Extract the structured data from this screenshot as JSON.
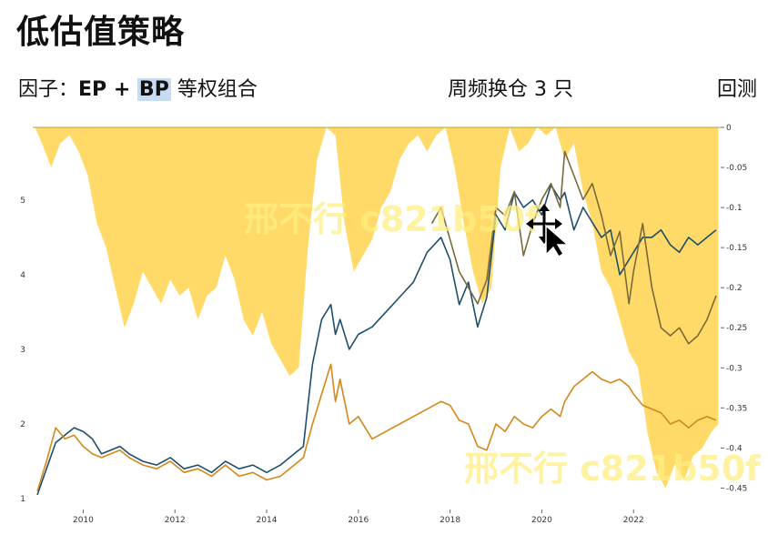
{
  "slide": {
    "title": "低估值策略",
    "factor_prefix": "因子：",
    "factor_ep": "EP + ",
    "factor_bp": "BP",
    "factor_suffix": " 等权组合",
    "rebalance": "周频换仓 3 只",
    "backtest_partial": "回测",
    "watermark": "邢不行 c821b50f"
  },
  "chart_data": {
    "type": "line",
    "title": "",
    "x_ticks": [
      "2010",
      "2012",
      "2014",
      "2016",
      "2018",
      "2020",
      "2022"
    ],
    "x_range": [
      2008.9,
      2023.9
    ],
    "y_left_ticks": [
      "1",
      "2",
      "3",
      "4",
      "5"
    ],
    "y_left_range": [
      1,
      5.9
    ],
    "y_right_ticks": [
      "0",
      "-0.05",
      "-0.1",
      "-0.15",
      "-0.2",
      "-0.25",
      "-0.3",
      "-0.35",
      "-0.4",
      "-0.45"
    ],
    "y_right_range": [
      -0.47,
      0
    ],
    "series": [
      {
        "role": "strategy",
        "color": "#1f4e6b",
        "axis": "left",
        "x": [
          2009.0,
          2009.2,
          2009.4,
          2009.6,
          2009.8,
          2010.0,
          2010.2,
          2010.4,
          2010.6,
          2010.8,
          2011.0,
          2011.3,
          2011.6,
          2011.9,
          2012.2,
          2012.5,
          2012.8,
          2013.1,
          2013.4,
          2013.7,
          2014.0,
          2014.3,
          2014.6,
          2014.8,
          2015.0,
          2015.2,
          2015.4,
          2015.5,
          2015.6,
          2015.8,
          2016.0,
          2016.3,
          2016.6,
          2016.9,
          2017.2,
          2017.5,
          2017.8,
          2018.0,
          2018.2,
          2018.4,
          2018.6,
          2018.8,
          2019.0,
          2019.2,
          2019.4,
          2019.6,
          2019.8,
          2020.0,
          2020.2,
          2020.4,
          2020.5,
          2020.7,
          2020.9,
          2021.1,
          2021.3,
          2021.5,
          2021.7,
          2021.9,
          2022.0,
          2022.2,
          2022.4,
          2022.6,
          2022.8,
          2023.0,
          2023.2,
          2023.4,
          2023.6,
          2023.8
        ],
        "y": [
          1.05,
          1.4,
          1.75,
          1.85,
          1.95,
          1.9,
          1.8,
          1.6,
          1.65,
          1.7,
          1.6,
          1.5,
          1.45,
          1.55,
          1.4,
          1.45,
          1.35,
          1.5,
          1.4,
          1.45,
          1.35,
          1.45,
          1.6,
          1.7,
          2.8,
          3.4,
          3.6,
          3.2,
          3.4,
          3.0,
          3.2,
          3.3,
          3.5,
          3.7,
          3.9,
          4.3,
          4.5,
          4.2,
          3.6,
          3.9,
          3.3,
          3.7,
          4.8,
          4.6,
          5.1,
          4.9,
          5.0,
          4.8,
          5.2,
          5.0,
          5.1,
          4.6,
          4.9,
          4.7,
          4.5,
          4.6,
          4.0,
          4.2,
          4.3,
          4.5,
          4.5,
          4.6,
          4.4,
          4.3,
          4.5,
          4.4,
          4.5,
          4.6
        ]
      },
      {
        "role": "drawdown-trace",
        "color": "#7a6a3a",
        "axis": "right",
        "x": [
          2017.6,
          2017.8,
          2018.0,
          2018.2,
          2018.4,
          2018.6,
          2018.8,
          2019.0,
          2019.2,
          2019.4,
          2019.6,
          2019.8,
          2020.0,
          2020.2,
          2020.4,
          2020.5,
          2020.7,
          2020.9,
          2021.1,
          2021.3,
          2021.5,
          2021.7,
          2021.9,
          2022.0,
          2022.2,
          2022.4,
          2022.6,
          2022.8,
          2023.0,
          2023.2,
          2023.4,
          2023.6,
          2023.8
        ],
        "y": [
          -0.12,
          -0.1,
          -0.14,
          -0.18,
          -0.2,
          -0.22,
          -0.19,
          -0.1,
          -0.11,
          -0.08,
          -0.16,
          -0.12,
          -0.09,
          -0.07,
          -0.1,
          -0.03,
          -0.06,
          -0.09,
          -0.07,
          -0.11,
          -0.16,
          -0.13,
          -0.22,
          -0.18,
          -0.12,
          -0.2,
          -0.25,
          -0.26,
          -0.25,
          -0.27,
          -0.26,
          -0.24,
          -0.21
        ]
      },
      {
        "role": "benchmark",
        "color": "#d4881a",
        "axis": "left",
        "x": [
          2009.0,
          2009.2,
          2009.4,
          2009.6,
          2009.8,
          2010.0,
          2010.2,
          2010.4,
          2010.6,
          2010.8,
          2011.0,
          2011.3,
          2011.6,
          2011.9,
          2012.2,
          2012.5,
          2012.8,
          2013.1,
          2013.4,
          2013.7,
          2014.0,
          2014.3,
          2014.6,
          2014.8,
          2015.0,
          2015.2,
          2015.4,
          2015.5,
          2015.6,
          2015.8,
          2016.0,
          2016.3,
          2016.6,
          2016.9,
          2017.2,
          2017.5,
          2017.8,
          2018.0,
          2018.2,
          2018.4,
          2018.6,
          2018.8,
          2019.0,
          2019.2,
          2019.4,
          2019.6,
          2019.8,
          2020.0,
          2020.2,
          2020.4,
          2020.5,
          2020.7,
          2020.9,
          2021.1,
          2021.3,
          2021.5,
          2021.7,
          2021.9,
          2022.0,
          2022.2,
          2022.4,
          2022.6,
          2022.8,
          2023.0,
          2023.2,
          2023.4,
          2023.6,
          2023.8
        ],
        "y": [
          1.1,
          1.5,
          1.95,
          1.8,
          1.85,
          1.7,
          1.6,
          1.55,
          1.6,
          1.65,
          1.55,
          1.45,
          1.4,
          1.5,
          1.35,
          1.4,
          1.3,
          1.45,
          1.3,
          1.35,
          1.25,
          1.3,
          1.45,
          1.55,
          2.0,
          2.4,
          2.8,
          2.3,
          2.6,
          2.0,
          2.1,
          1.8,
          1.9,
          2.0,
          2.1,
          2.2,
          2.3,
          2.25,
          2.05,
          2.0,
          1.7,
          1.65,
          2.0,
          1.9,
          2.1,
          2.0,
          1.95,
          2.1,
          2.2,
          2.1,
          2.3,
          2.5,
          2.6,
          2.7,
          2.6,
          2.55,
          2.6,
          2.5,
          2.4,
          2.25,
          2.2,
          2.15,
          2.0,
          2.05,
          1.95,
          2.05,
          2.1,
          2.05
        ]
      }
    ],
    "drawdown_area": {
      "color": "#ffd34d",
      "axis": "right",
      "x": [
        2008.95,
        2009.1,
        2009.3,
        2009.5,
        2009.7,
        2009.9,
        2010.1,
        2010.3,
        2010.5,
        2010.7,
        2010.9,
        2011.1,
        2011.3,
        2011.5,
        2011.7,
        2011.9,
        2012.1,
        2012.3,
        2012.5,
        2012.7,
        2012.9,
        2013.1,
        2013.3,
        2013.5,
        2013.7,
        2013.9,
        2014.1,
        2014.3,
        2014.5,
        2014.7,
        2014.9,
        2015.1,
        2015.3,
        2015.5,
        2015.7,
        2015.9,
        2016.1,
        2016.3,
        2016.5,
        2016.7,
        2016.9,
        2017.1,
        2017.3,
        2017.5,
        2017.7,
        2017.9,
        2018.1,
        2018.3,
        2018.5,
        2018.7,
        2018.9,
        2019.1,
        2019.3,
        2019.5,
        2019.7,
        2019.9,
        2020.1,
        2020.3,
        2020.5,
        2020.7,
        2020.9,
        2021.1,
        2021.3,
        2021.5,
        2021.7,
        2021.9,
        2022.1,
        2022.3,
        2022.5,
        2022.7,
        2022.9,
        2023.1,
        2023.3,
        2023.5,
        2023.7,
        2023.85
      ],
      "y": [
        0,
        -0.02,
        -0.05,
        -0.02,
        -0.01,
        -0.03,
        -0.06,
        -0.12,
        -0.15,
        -0.2,
        -0.25,
        -0.22,
        -0.18,
        -0.2,
        -0.22,
        -0.19,
        -0.21,
        -0.2,
        -0.24,
        -0.21,
        -0.2,
        -0.16,
        -0.19,
        -0.24,
        -0.26,
        -0.23,
        -0.27,
        -0.29,
        -0.31,
        -0.3,
        -0.15,
        -0.04,
        0,
        -0.01,
        -0.12,
        -0.18,
        -0.16,
        -0.14,
        -0.1,
        -0.08,
        -0.04,
        -0.02,
        -0.01,
        -0.03,
        -0.01,
        0,
        -0.05,
        -0.12,
        -0.18,
        -0.22,
        -0.2,
        -0.05,
        0,
        -0.03,
        -0.02,
        0,
        -0.01,
        0,
        -0.04,
        -0.02,
        -0.08,
        -0.12,
        -0.18,
        -0.2,
        -0.24,
        -0.28,
        -0.3,
        -0.38,
        -0.43,
        -0.45,
        -0.42,
        -0.44,
        -0.41,
        -0.4,
        -0.38,
        -0.37
      ]
    }
  }
}
